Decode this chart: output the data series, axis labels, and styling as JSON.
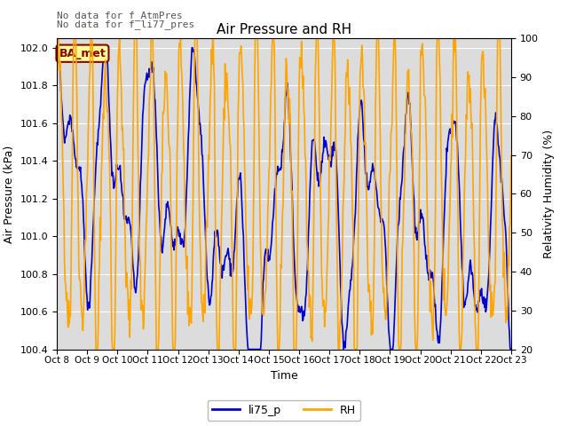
{
  "title": "Air Pressure and RH",
  "xlabel": "Time",
  "ylabel_left": "Air Pressure (kPa)",
  "ylabel_right": "Relativity Humidity (%)",
  "annotation_line1": "No data for f_AtmPres",
  "annotation_line2": "No data for f̲li77_pres",
  "box_label": "BA_met",
  "legend_labels": [
    "li75_p",
    "RH"
  ],
  "line_color_blue": "#0000CC",
  "line_color_orange": "#FFA500",
  "box_facecolor": "#FFFF99",
  "box_edgecolor": "#8B0000",
  "bg_color": "#DCDCDC",
  "ylim_left": [
    100.4,
    102.05
  ],
  "ylim_right": [
    20,
    100
  ],
  "yticks_left": [
    100.4,
    100.6,
    100.8,
    101.0,
    101.2,
    101.4,
    101.6,
    101.8,
    102.0
  ],
  "yticks_right": [
    20,
    30,
    40,
    50,
    60,
    70,
    80,
    90,
    100
  ],
  "xtick_labels": [
    "Oct 8",
    "Oct 9",
    "Oct 10",
    "Oct 11",
    "Oct 12",
    "Oct 13",
    "Oct 14",
    "Oct 15",
    "Oct 16",
    "Oct 17",
    "Oct 18",
    "Oct 19",
    "Oct 20",
    "Oct 21",
    "Oct 22",
    "Oct 23"
  ],
  "n_days": 16,
  "seed": 42
}
